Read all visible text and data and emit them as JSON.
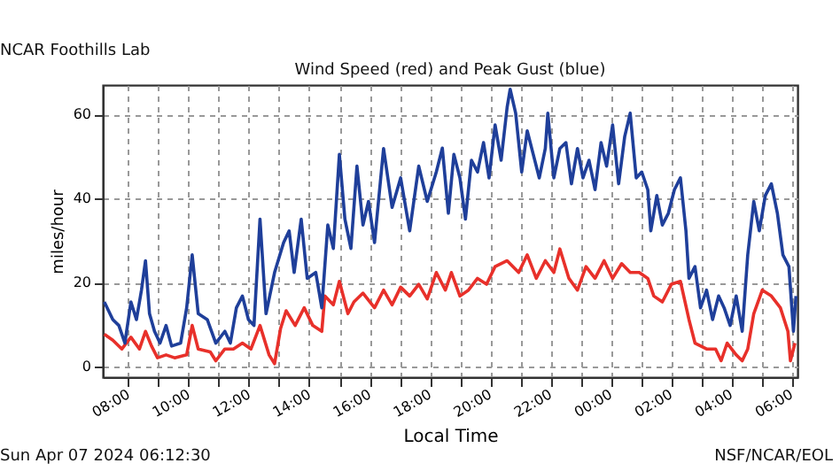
{
  "chart_data": {
    "type": "line",
    "title": "Wind Speed (red) and Peak Gust (blue)",
    "xlabel": "Local Time",
    "ylabel": "miles/hour",
    "annotations": [
      "NCAR Foothills Lab",
      "Sun Apr 07 2024 06:12:30",
      "NSF/NCAR/EOL"
    ],
    "xlim": [
      "2024-04-06T07:09",
      "2024-04-07T06:12"
    ],
    "ylim": [
      -2.5,
      67
    ],
    "yticks": [
      0,
      20,
      40,
      60
    ],
    "xticks": [
      {
        "value": "2024-04-06T08:00",
        "label": "08:00"
      },
      {
        "value": "2024-04-06T09:00",
        "label": null
      },
      {
        "value": "2024-04-06T10:00",
        "label": "10:00"
      },
      {
        "value": "2024-04-06T11:00",
        "label": null
      },
      {
        "value": "2024-04-06T12:00",
        "label": "12:00"
      },
      {
        "value": "2024-04-06T13:00",
        "label": null
      },
      {
        "value": "2024-04-06T14:00",
        "label": "14:00"
      },
      {
        "value": "2024-04-06T15:00",
        "label": null
      },
      {
        "value": "2024-04-06T16:00",
        "label": "16:00"
      },
      {
        "value": "2024-04-06T17:00",
        "label": null
      },
      {
        "value": "2024-04-06T18:00",
        "label": "18:00"
      },
      {
        "value": "2024-04-06T19:00",
        "label": null
      },
      {
        "value": "2024-04-06T20:00",
        "label": "20:00"
      },
      {
        "value": "2024-04-06T21:00",
        "label": null
      },
      {
        "value": "2024-04-06T22:00",
        "label": "22:00"
      },
      {
        "value": "2024-04-06T23:00",
        "label": null
      },
      {
        "value": "2024-04-07T00:00",
        "label": "00:00"
      },
      {
        "value": "2024-04-07T01:00",
        "label": null
      },
      {
        "value": "2024-04-07T02:00",
        "label": "02:00"
      },
      {
        "value": "2024-04-07T03:00",
        "label": null
      },
      {
        "value": "2024-04-07T04:00",
        "label": "04:00"
      },
      {
        "value": "2024-04-07T05:00",
        "label": null
      },
      {
        "value": "2024-04-07T06:00",
        "label": "06:00"
      }
    ],
    "grid": true,
    "marker": "none",
    "line_style": "solid",
    "series": [
      {
        "color": "#e8302a",
        "x": [
          "2024-04-06T07:12",
          "2024-04-06T07:29",
          "2024-04-06T07:47",
          "2024-04-06T08:05",
          "2024-04-06T08:22",
          "2024-04-06T08:34",
          "2024-04-06T08:46",
          "2024-04-06T08:58",
          "2024-04-06T09:15",
          "2024-04-06T09:32",
          "2024-04-06T09:56",
          "2024-04-06T10:07",
          "2024-04-06T10:19",
          "2024-04-06T10:43",
          "2024-04-06T10:54",
          "2024-04-06T11:12",
          "2024-04-06T11:29",
          "2024-04-06T11:47",
          "2024-04-06T12:04",
          "2024-04-06T12:22",
          "2024-04-06T12:40",
          "2024-04-06T12:51",
          "2024-04-06T13:03",
          "2024-04-06T13:14",
          "2024-04-06T13:32",
          "2024-04-06T13:50",
          "2024-04-06T14:07",
          "2024-04-06T14:25",
          "2024-04-06T14:31",
          "2024-04-06T14:48",
          "2024-04-06T15:00",
          "2024-04-06T15:17",
          "2024-04-06T15:29",
          "2024-04-06T15:47",
          "2024-04-06T16:10",
          "2024-04-06T16:28",
          "2024-04-06T16:45",
          "2024-04-06T17:02",
          "2024-04-06T17:20",
          "2024-04-06T17:38",
          "2024-04-06T17:55",
          "2024-04-06T18:13",
          "2024-04-06T18:31",
          "2024-04-06T18:43",
          "2024-04-06T19:00",
          "2024-04-06T19:17",
          "2024-04-06T19:35",
          "2024-04-06T19:53",
          "2024-04-06T20:10",
          "2024-04-06T20:34",
          "2024-04-06T20:57",
          "2024-04-06T21:14",
          "2024-04-06T21:32",
          "2024-04-06T21:50",
          "2024-04-06T22:07",
          "2024-04-06T22:19",
          "2024-04-06T22:37",
          "2024-04-06T22:54",
          "2024-04-06T23:11",
          "2024-04-06T23:29",
          "2024-04-06T23:47",
          "2024-04-07T00:04",
          "2024-04-07T00:22",
          "2024-04-07T00:39",
          "2024-04-07T00:57",
          "2024-04-07T01:14",
          "2024-04-07T01:26",
          "2024-04-07T01:43",
          "2024-04-07T02:01",
          "2024-04-07T02:19",
          "2024-04-07T02:36",
          "2024-04-07T02:48",
          "2024-04-07T03:11",
          "2024-04-07T03:29",
          "2024-04-07T03:40",
          "2024-04-07T03:52",
          "2024-04-07T04:10",
          "2024-04-07T04:22",
          "2024-04-07T04:33",
          "2024-04-07T04:45",
          "2024-04-07T05:02",
          "2024-04-07T05:20",
          "2024-04-07T05:38",
          "2024-04-07T05:53",
          "2024-04-07T05:58",
          "2024-04-07T06:07"
        ],
        "values": [
          7.7,
          6.3,
          4.2,
          7.0,
          4.2,
          8.4,
          4.9,
          2.1,
          2.8,
          2.1,
          2.8,
          9.8,
          4.2,
          3.5,
          1.4,
          4.2,
          4.2,
          5.6,
          4.2,
          9.8,
          2.8,
          0.7,
          9.1,
          13.3,
          9.8,
          14.0,
          9.8,
          8.4,
          16.8,
          14.7,
          20.3,
          12.6,
          15.4,
          17.5,
          14.0,
          18.2,
          14.7,
          18.9,
          16.8,
          19.6,
          16.1,
          22.4,
          18.2,
          22.4,
          16.8,
          18.2,
          21.0,
          19.6,
          23.8,
          25.2,
          22.4,
          26.6,
          21.0,
          25.2,
          22.4,
          28.0,
          21.0,
          18.2,
          23.8,
          21.0,
          25.2,
          21.0,
          24.5,
          22.4,
          22.4,
          21.0,
          16.8,
          15.4,
          19.6,
          20.3,
          11.2,
          5.6,
          4.2,
          4.2,
          1.4,
          5.6,
          2.8,
          1.4,
          4.2,
          12.6,
          18.2,
          16.8,
          14.0,
          8.4,
          1.4,
          5.6
        ]
      },
      {
        "color": "#1f3f9a",
        "x": [
          "2024-04-06T07:12",
          "2024-04-06T07:29",
          "2024-04-06T07:41",
          "2024-04-06T07:53",
          "2024-04-06T08:05",
          "2024-04-06T08:16",
          "2024-04-06T08:26",
          "2024-04-06T08:34",
          "2024-04-06T08:42",
          "2024-04-06T08:52",
          "2024-04-06T09:03",
          "2024-04-06T09:15",
          "2024-04-06T09:26",
          "2024-04-06T09:44",
          "2024-04-06T09:56",
          "2024-04-06T10:07",
          "2024-04-06T10:19",
          "2024-04-06T10:37",
          "2024-04-06T10:54",
          "2024-04-06T11:12",
          "2024-04-06T11:23",
          "2024-04-06T11:35",
          "2024-04-06T11:47",
          "2024-04-06T11:59",
          "2024-04-06T12:10",
          "2024-04-06T12:22",
          "2024-04-06T12:34",
          "2024-04-06T12:51",
          "2024-04-06T13:09",
          "2024-04-06T13:20",
          "2024-04-06T13:30",
          "2024-04-06T13:44",
          "2024-04-06T13:56",
          "2024-04-06T14:13",
          "2024-04-06T14:25",
          "2024-04-06T14:37",
          "2024-04-06T14:48",
          "2024-04-06T15:00",
          "2024-04-06T15:11",
          "2024-04-06T15:23",
          "2024-04-06T15:35",
          "2024-04-06T15:47",
          "2024-04-06T15:58",
          "2024-04-06T16:10",
          "2024-04-06T16:28",
          "2024-04-06T16:45",
          "2024-04-06T17:02",
          "2024-04-06T17:20",
          "2024-04-06T17:38",
          "2024-04-06T17:55",
          "2024-04-06T18:13",
          "2024-04-06T18:25",
          "2024-04-06T18:37",
          "2024-04-06T18:48",
          "2024-04-06T19:00",
          "2024-04-06T19:11",
          "2024-04-06T19:23",
          "2024-04-06T19:35",
          "2024-04-06T19:47",
          "2024-04-06T19:58",
          "2024-04-06T20:10",
          "2024-04-06T20:22",
          "2024-04-06T20:34",
          "2024-04-06T20:40",
          "2024-04-06T20:51",
          "2024-04-06T21:03",
          "2024-04-06T21:14",
          "2024-04-06T21:26",
          "2024-04-06T21:38",
          "2024-04-06T21:50",
          "2024-04-06T21:55",
          "2024-04-06T22:07",
          "2024-04-06T22:19",
          "2024-04-06T22:31",
          "2024-04-06T22:42",
          "2024-04-06T22:54",
          "2024-04-06T23:05",
          "2024-04-06T23:17",
          "2024-04-06T23:29",
          "2024-04-06T23:41",
          "2024-04-06T23:52",
          "2024-04-07T00:04",
          "2024-04-07T00:16",
          "2024-04-07T00:28",
          "2024-04-07T00:39",
          "2024-04-07T00:51",
          "2024-04-07T01:02",
          "2024-04-07T01:14",
          "2024-04-07T01:20",
          "2024-04-07T01:32",
          "2024-04-07T01:43",
          "2024-04-07T01:55",
          "2024-04-07T02:07",
          "2024-04-07T02:19",
          "2024-04-07T02:30",
          "2024-04-07T02:36",
          "2024-04-07T02:48",
          "2024-04-07T02:59",
          "2024-04-07T03:11",
          "2024-04-07T03:23",
          "2024-04-07T03:35",
          "2024-04-07T03:46",
          "2024-04-07T03:58",
          "2024-04-07T04:10",
          "2024-04-07T04:22",
          "2024-04-07T04:33",
          "2024-04-07T04:45",
          "2024-04-07T04:56",
          "2024-04-07T05:08",
          "2024-04-07T05:20",
          "2024-04-07T05:32",
          "2024-04-07T05:43",
          "2024-04-07T05:55",
          "2024-04-07T06:04",
          "2024-04-07T06:09"
        ],
        "values": [
          15.4,
          11.2,
          9.8,
          5.6,
          15.4,
          11.2,
          18.2,
          25.2,
          12.6,
          8.4,
          5.6,
          9.8,
          4.9,
          5.6,
          14.0,
          26.6,
          12.6,
          11.2,
          5.6,
          8.4,
          5.6,
          14.0,
          16.8,
          11.2,
          9.8,
          35.1,
          12.6,
          22.4,
          29.5,
          32.3,
          22.4,
          35.1,
          21.0,
          22.4,
          14.0,
          33.7,
          28.1,
          50.5,
          35.1,
          28.1,
          47.7,
          33.7,
          39.3,
          29.5,
          51.9,
          37.9,
          44.9,
          32.3,
          47.7,
          39.3,
          46.3,
          52.0,
          36.5,
          50.5,
          44.9,
          35.1,
          49.1,
          46.3,
          53.3,
          44.9,
          57.5,
          49.1,
          61.7,
          66.0,
          60.3,
          46.3,
          56.1,
          50.5,
          44.9,
          51.9,
          60.3,
          44.9,
          51.9,
          53.3,
          43.5,
          51.9,
          44.9,
          49.1,
          42.1,
          53.3,
          47.7,
          57.5,
          43.5,
          54.7,
          60.3,
          44.9,
          46.3,
          42.1,
          32.3,
          40.7,
          33.7,
          36.5,
          42.1,
          44.9,
          32.3,
          21.0,
          23.8,
          14.0,
          18.2,
          11.2,
          16.8,
          14.0,
          9.8,
          16.8,
          8.4,
          26.6,
          39.3,
          32.3,
          40.7,
          43.5,
          36.5,
          26.6,
          23.8,
          8.4,
          16.8
        ]
      }
    ]
  }
}
